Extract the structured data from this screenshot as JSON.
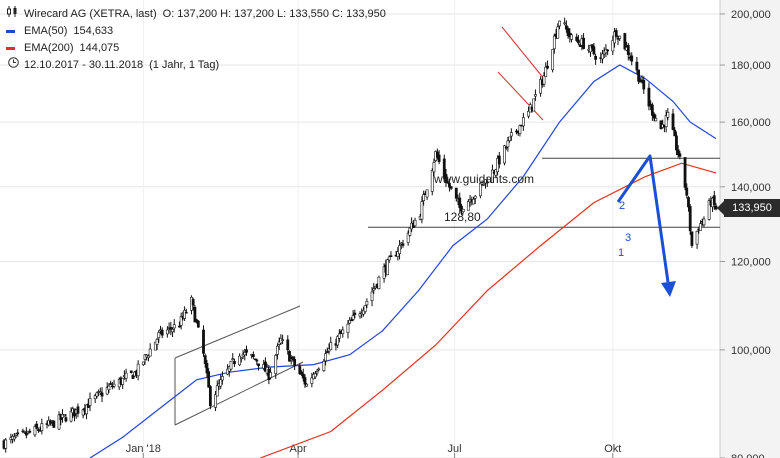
{
  "header": {
    "title": "Wirecard AG (XETRA, last)",
    "ohlc": "O: 137,200  H: 137,200  L: 133,550  C: 133,950",
    "period": "12.10.2017 - 30.11.2018",
    "interval": "(1 Jahr, 1 Tag)",
    "ema50_label": "EMA(50)",
    "ema50_value": "154,633",
    "ema200_label": "EMA(200)",
    "ema200_value": "144,075",
    "ema50_color": "#2244dd",
    "ema200_color": "#e0301e"
  },
  "last_price": "133,950",
  "chart_data": {
    "type": "candlestick",
    "y_scale": "log",
    "ylim": [
      80000,
      205000
    ],
    "yticks": [
      80000,
      100000,
      120000,
      140000,
      160000,
      180000,
      200000
    ],
    "ytick_labels": [
      "80,000",
      "100,000",
      "120,000",
      "140,000",
      "160,000",
      "180,000",
      "200,000"
    ],
    "xlim": [
      "2017-10-12",
      "2018-11-30"
    ],
    "xticks": [
      {
        "date": "2018-01-01",
        "label": "Jan '18"
      },
      {
        "date": "2018-04-01",
        "label": "Apr"
      },
      {
        "date": "2018-07-01",
        "label": "Jul"
      },
      {
        "date": "2018-10-01",
        "label": "Okt"
      }
    ],
    "price_path": [
      [
        "2017-10-12",
        82500
      ],
      [
        "2017-10-25",
        84000
      ],
      [
        "2017-11-10",
        86000
      ],
      [
        "2017-11-28",
        89000
      ],
      [
        "2017-12-12",
        92500
      ],
      [
        "2017-12-28",
        95500
      ],
      [
        "2018-01-10",
        103000
      ],
      [
        "2018-01-22",
        105500
      ],
      [
        "2018-01-29",
        110500
      ],
      [
        "2018-02-05",
        99000
      ],
      [
        "2018-02-09",
        90000
      ],
      [
        "2018-02-16",
        94000
      ],
      [
        "2018-02-26",
        99500
      ],
      [
        "2018-03-08",
        98000
      ],
      [
        "2018-03-15",
        95000
      ],
      [
        "2018-03-22",
        102000
      ],
      [
        "2018-03-28",
        98000
      ],
      [
        "2018-04-06",
        93000
      ],
      [
        "2018-04-12",
        96500
      ],
      [
        "2018-04-20",
        100500
      ],
      [
        "2018-05-01",
        105500
      ],
      [
        "2018-05-10",
        110000
      ],
      [
        "2018-05-21",
        118000
      ],
      [
        "2018-06-01",
        125000
      ],
      [
        "2018-06-11",
        133000
      ],
      [
        "2018-06-20",
        150000
      ],
      [
        "2018-06-26",
        142000
      ],
      [
        "2018-07-04",
        134000
      ],
      [
        "2018-07-13",
        138000
      ],
      [
        "2018-07-24",
        145000
      ],
      [
        "2018-08-03",
        155000
      ],
      [
        "2018-08-13",
        163000
      ],
      [
        "2018-08-22",
        176000
      ],
      [
        "2018-08-31",
        198000
      ],
      [
        "2018-09-07",
        190000
      ],
      [
        "2018-09-14",
        188000
      ],
      [
        "2018-09-24",
        182000
      ],
      [
        "2018-10-03",
        193000
      ],
      [
        "2018-10-10",
        185000
      ],
      [
        "2018-10-16",
        176000
      ],
      [
        "2018-10-22",
        166000
      ],
      [
        "2018-10-29",
        158000
      ],
      [
        "2018-11-02",
        162000
      ],
      [
        "2018-11-08",
        150000
      ],
      [
        "2018-11-13",
        138000
      ],
      [
        "2018-11-16",
        124000
      ],
      [
        "2018-11-20",
        129000
      ],
      [
        "2018-11-23",
        131000
      ],
      [
        "2018-11-27",
        136000
      ],
      [
        "2018-11-30",
        133950
      ]
    ],
    "ema50": [
      [
        "2017-12-01",
        80000
      ],
      [
        "2017-12-20",
        83500
      ],
      [
        "2018-01-10",
        88500
      ],
      [
        "2018-02-01",
        94000
      ],
      [
        "2018-02-20",
        95500
      ],
      [
        "2018-03-15",
        96500
      ],
      [
        "2018-04-10",
        97000
      ],
      [
        "2018-05-01",
        99000
      ],
      [
        "2018-05-20",
        104000
      ],
      [
        "2018-06-10",
        113000
      ],
      [
        "2018-06-30",
        124000
      ],
      [
        "2018-07-20",
        131000
      ],
      [
        "2018-08-10",
        143000
      ],
      [
        "2018-08-31",
        160000
      ],
      [
        "2018-09-20",
        174000
      ],
      [
        "2018-10-05",
        180000
      ],
      [
        "2018-10-20",
        175000
      ],
      [
        "2018-11-05",
        167000
      ],
      [
        "2018-11-15",
        160000
      ],
      [
        "2018-11-30",
        154633
      ]
    ],
    "ema200": [
      [
        "2018-03-10",
        80000
      ],
      [
        "2018-04-20",
        84500
      ],
      [
        "2018-05-20",
        92000
      ],
      [
        "2018-06-20",
        101000
      ],
      [
        "2018-07-20",
        113000
      ],
      [
        "2018-08-20",
        124000
      ],
      [
        "2018-09-20",
        135500
      ],
      [
        "2018-10-20",
        143000
      ],
      [
        "2018-11-10",
        147000
      ],
      [
        "2018-11-20",
        145500
      ],
      [
        "2018-11-30",
        144075
      ]
    ],
    "annotations": {
      "support_label": "128,80",
      "support_level": 128800,
      "resistance_level": 148500,
      "watermark": "www.guidants.com",
      "wave_labels": [
        "1",
        "2",
        "3"
      ]
    }
  }
}
